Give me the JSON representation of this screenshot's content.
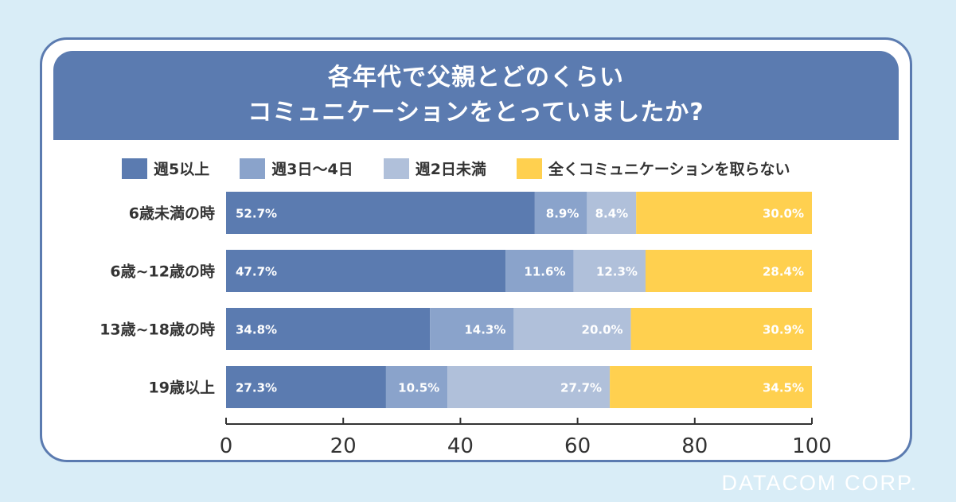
{
  "footer": "DATACOM CORP.",
  "colors": {
    "series": [
      "#5b7bb0",
      "#8aa3cb",
      "#b0c0da",
      "#ffd04f"
    ],
    "background": "#d9edf7",
    "accent": "#5b7bb0"
  },
  "chart_data": {
    "type": "bar",
    "orientation": "horizontal-stacked",
    "title_lines": [
      "各年代で父親とどのくらい",
      "コミュニケーションをとっていましたか?"
    ],
    "categories": [
      "6歳未満の時",
      "6歳~12歳の時",
      "13歳~18歳の時",
      "19歳以上"
    ],
    "series": [
      {
        "name": "週5以上",
        "values": [
          52.7,
          47.7,
          34.8,
          27.3
        ],
        "labels": [
          "52.7%",
          "47.7%",
          "34.8%",
          "27.3%"
        ]
      },
      {
        "name": "週3日〜4日",
        "values": [
          8.9,
          11.6,
          14.3,
          10.5
        ],
        "labels": [
          "8.9%",
          "11.6%",
          "14.3%",
          "10.5%"
        ]
      },
      {
        "name": "週2日未満",
        "values": [
          8.4,
          12.3,
          20.0,
          27.7
        ],
        "labels": [
          "8.4%",
          "12.3%",
          "20.0%",
          "27.7%"
        ]
      },
      {
        "name": "全くコミュニケーションを取らない",
        "values": [
          30.0,
          28.4,
          30.9,
          34.5
        ],
        "labels": [
          "30.0%",
          "28.4%",
          "30.9%",
          "34.5%"
        ]
      }
    ],
    "xlim": [
      0,
      100
    ],
    "xticks": [
      "0",
      "20",
      "40",
      "60",
      "80",
      "100"
    ],
    "legend": "top"
  }
}
